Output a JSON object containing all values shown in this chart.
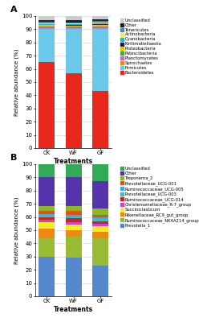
{
  "panel_A": {
    "categories": [
      "CK",
      "WF",
      "GF"
    ],
    "layers": [
      {
        "label": "Bacteroidetes",
        "color": "#E8281C",
        "values": [
          65,
          57,
          43
        ]
      },
      {
        "label": "Firmicutes",
        "color": "#6CC8E8",
        "values": [
          25,
          33,
          47
        ]
      },
      {
        "label": "Spirochaetes",
        "color": "#E88A18",
        "values": [
          1.0,
          1.0,
          1.0
        ]
      },
      {
        "label": "Planctomycetes",
        "color": "#CC66CC",
        "values": [
          0.5,
          0.5,
          0.5
        ]
      },
      {
        "label": "Patescibacteria",
        "color": "#44AA44",
        "values": [
          0.5,
          0.5,
          0.5
        ]
      },
      {
        "label": "Proteobacteria",
        "color": "#DDCC00",
        "values": [
          1.0,
          0.8,
          1.2
        ]
      },
      {
        "label": "Kiritimatiellaeota",
        "color": "#221188",
        "values": [
          0.5,
          0.5,
          1.0
        ]
      },
      {
        "label": "Cyanobacteria",
        "color": "#22BBAA",
        "values": [
          0.5,
          0.5,
          0.5
        ]
      },
      {
        "label": "Actinobacteria",
        "color": "#EEEE44",
        "values": [
          0.5,
          0.5,
          0.5
        ]
      },
      {
        "label": "Tenericutes",
        "color": "#4488CC",
        "values": [
          1.0,
          1.0,
          1.0
        ]
      },
      {
        "label": "Other",
        "color": "#222222",
        "values": [
          1.5,
          1.5,
          1.5
        ]
      },
      {
        "label": "Unclassified",
        "color": "#CCCCCC",
        "values": [
          3.0,
          3.2,
          3.3
        ]
      }
    ],
    "ylabel": "Relative abundance (%)",
    "xlabel": "Treatments",
    "ylim": [
      0,
      100
    ],
    "yticks": [
      0,
      10,
      20,
      30,
      40,
      50,
      60,
      70,
      80,
      90,
      100
    ]
  },
  "panel_B": {
    "categories": [
      "CK",
      "WF",
      "GF"
    ],
    "layers": [
      {
        "label": "Prevotella_1",
        "color": "#5588CC",
        "values": [
          30,
          29,
          23
        ]
      },
      {
        "label": "Ruminococcaceae_NK4A214_group",
        "color": "#99BB33",
        "values": [
          14,
          16,
          21
        ]
      },
      {
        "label": "Rikenellaceae_RC9_gut_group",
        "color": "#EE8811",
        "values": [
          7,
          5,
          5
        ]
      },
      {
        "label": "Succiniclasticum",
        "color": "#EEEE22",
        "values": [
          5,
          4,
          4
        ]
      },
      {
        "label": "Christensenellaceae_R-7_group",
        "color": "#CC44CC",
        "values": [
          2,
          2,
          2
        ]
      },
      {
        "label": "Ruminococcaceae_UCG-014",
        "color": "#CC2222",
        "values": [
          2,
          3,
          2
        ]
      },
      {
        "label": "Prevotellaceae_UCG-003",
        "color": "#44BBBB",
        "values": [
          1.5,
          1.5,
          1.5
        ]
      },
      {
        "label": "Ruminococcaceae_UCG-005",
        "color": "#44AADD",
        "values": [
          1,
          1,
          1
        ]
      },
      {
        "label": "Prevotellaceae_UCG-001",
        "color": "#DD5511",
        "values": [
          2,
          3,
          2
        ]
      },
      {
        "label": "Treponema_2",
        "color": "#88BB22",
        "values": [
          4,
          4,
          5
        ]
      },
      {
        "label": "Other",
        "color": "#5533AA",
        "values": [
          22,
          22,
          21
        ]
      },
      {
        "label": "Unclassified",
        "color": "#33AA55",
        "values": [
          9.5,
          9.5,
          12.5
        ]
      }
    ],
    "ylabel": "Relative abundance (%)",
    "xlabel": "Treatments",
    "ylim": [
      0,
      100
    ],
    "yticks": [
      0,
      10,
      20,
      30,
      40,
      50,
      60,
      70,
      80,
      90,
      100
    ]
  },
  "fig_width": 2.58,
  "fig_height": 4.0,
  "dpi": 100
}
